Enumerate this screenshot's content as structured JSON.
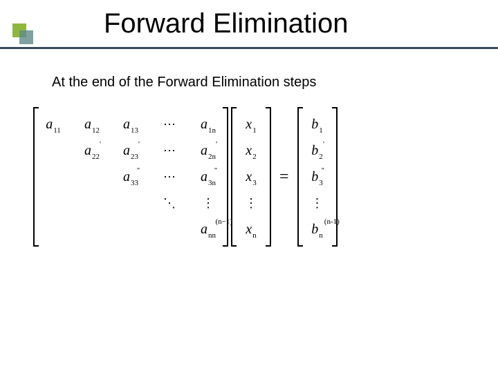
{
  "title": "Forward Elimination",
  "subtitle": "At the end of the Forward Elimination steps",
  "colors": {
    "accent_green": "#8fb73e",
    "accent_teal": "#5f8a8b",
    "divider": "#3a4a5a",
    "background": "#ffffff",
    "text": "#000000"
  },
  "equation": {
    "type": "matrix-equation",
    "A": {
      "rows": 5,
      "cols": 5,
      "cells": [
        [
          {
            "base": "a",
            "sub": "11"
          },
          {
            "base": "a",
            "sub": "12"
          },
          {
            "base": "a",
            "sub": "13"
          },
          {
            "sym": "⋯"
          },
          {
            "base": "a",
            "sub": "1n"
          }
        ],
        [
          {
            "blank": true
          },
          {
            "base": "a",
            "sub": "22",
            "sup": "'"
          },
          {
            "base": "a",
            "sub": "23",
            "sup": "'"
          },
          {
            "sym": "⋯"
          },
          {
            "base": "a",
            "sub": "2n",
            "sup": "'"
          }
        ],
        [
          {
            "blank": true
          },
          {
            "blank": true
          },
          {
            "base": "a",
            "sub": "33",
            "sup": "''"
          },
          {
            "sym": "⋯"
          },
          {
            "base": "a",
            "sub": "3n",
            "sup": "''"
          }
        ],
        [
          {
            "blank": true
          },
          {
            "blank": true
          },
          {
            "blank": true
          },
          {
            "sym": "⋱"
          },
          {
            "sym": "⋮"
          }
        ],
        [
          {
            "blank": true
          },
          {
            "blank": true
          },
          {
            "blank": true
          },
          {
            "blank": true
          },
          {
            "base": "a",
            "sub": "nn",
            "supw": "(n−1)"
          }
        ]
      ]
    },
    "x": {
      "cells": [
        [
          {
            "base": "x",
            "sub": "1"
          }
        ],
        [
          {
            "base": "x",
            "sub": "2"
          }
        ],
        [
          {
            "base": "x",
            "sub": "3"
          }
        ],
        [
          {
            "sym": "⋮"
          }
        ],
        [
          {
            "base": "x",
            "sub": "n"
          }
        ]
      ]
    },
    "equals": "=",
    "b": {
      "cells": [
        [
          {
            "base": "b",
            "sub": "1"
          }
        ],
        [
          {
            "base": "b",
            "sub": "2",
            "sup": "'"
          }
        ],
        [
          {
            "base": "b",
            "sub": "3",
            "sup": "''"
          }
        ],
        [
          {
            "sym": "⋮"
          }
        ],
        [
          {
            "base": "b",
            "sub": "n",
            "supw": "(n-1)"
          }
        ]
      ]
    }
  }
}
